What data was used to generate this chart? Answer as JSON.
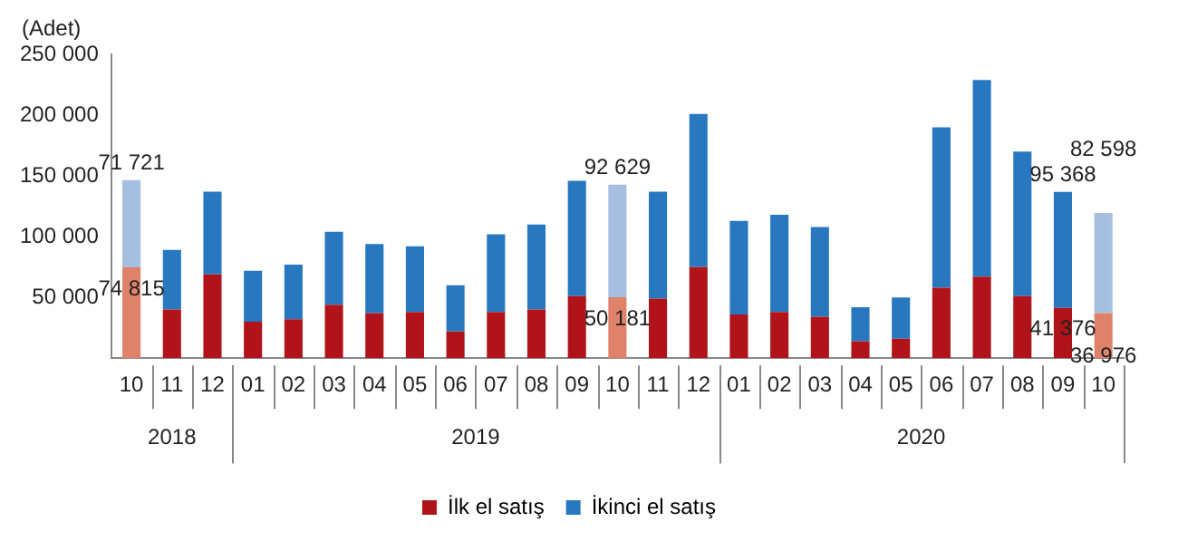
{
  "chart_data": {
    "type": "bar",
    "stacked": true,
    "ylabel": "(Adet)",
    "categories": [
      "10",
      "11",
      "12",
      "01",
      "02",
      "03",
      "04",
      "05",
      "06",
      "07",
      "08",
      "09",
      "10",
      "11",
      "12",
      "01",
      "02",
      "03",
      "04",
      "05",
      "06",
      "07",
      "08",
      "09",
      "10"
    ],
    "series": [
      {
        "name": "İlk el satış",
        "color": "#b0141a",
        "colors": [
          "#e0826a",
          "#b0141a",
          "#b0141a",
          "#b0141a",
          "#b0141a",
          "#b0141a",
          "#b0141a",
          "#b0141a",
          "#b0141a",
          "#b0141a",
          "#b0141a",
          "#b0141a",
          "#e0826a",
          "#b0141a",
          "#b0141a",
          "#b0141a",
          "#b0141a",
          "#b0141a",
          "#b0141a",
          "#b0141a",
          "#b0141a",
          "#b0141a",
          "#b0141a",
          "#b0141a",
          "#e0826a"
        ],
        "values": [
          74815,
          40000,
          69000,
          30000,
          32000,
          44000,
          37000,
          38000,
          22000,
          38000,
          40000,
          51000,
          50181,
          49000,
          75000,
          36000,
          38000,
          34000,
          14000,
          16000,
          58000,
          67000,
          51000,
          41376,
          36976
        ],
        "value_labels": [
          "74 815",
          null,
          null,
          null,
          null,
          null,
          null,
          null,
          null,
          null,
          null,
          null,
          "50 181",
          null,
          null,
          null,
          null,
          null,
          null,
          null,
          null,
          null,
          null,
          "41 376",
          "36 976"
        ]
      },
      {
        "name": "İkinci el satış",
        "color": "#2878c0",
        "colors": [
          "#a6bfe0",
          "#2878c0",
          "#2878c0",
          "#2878c0",
          "#2878c0",
          "#2878c0",
          "#2878c0",
          "#2878c0",
          "#2878c0",
          "#2878c0",
          "#2878c0",
          "#2878c0",
          "#a6bfe0",
          "#2878c0",
          "#2878c0",
          "#2878c0",
          "#2878c0",
          "#2878c0",
          "#2878c0",
          "#2878c0",
          "#2878c0",
          "#2878c0",
          "#2878c0",
          "#2878c0",
          "#a6bfe0"
        ],
        "values": [
          71721,
          49000,
          68000,
          42000,
          45000,
          60000,
          57000,
          54000,
          38000,
          64000,
          70000,
          95000,
          92629,
          88000,
          126000,
          77000,
          80000,
          74000,
          28000,
          34000,
          132000,
          162000,
          119000,
          95368,
          82598
        ],
        "value_labels": [
          "71 721",
          null,
          null,
          null,
          null,
          null,
          null,
          null,
          null,
          null,
          null,
          null,
          "92 629",
          null,
          null,
          null,
          null,
          null,
          null,
          null,
          null,
          null,
          null,
          "95 368",
          "82 598"
        ]
      }
    ],
    "ylim": [
      0,
      250000
    ],
    "yticks": [
      {
        "value": 0,
        "label": null
      },
      {
        "value": 50000,
        "label": "50 000"
      },
      {
        "value": 100000,
        "label": "100 000"
      },
      {
        "value": 150000,
        "label": "150 000"
      },
      {
        "value": 200000,
        "label": "200 000"
      },
      {
        "value": 250000,
        "label": "250 000"
      }
    ],
    "annotations": [
      "2018",
      "2019",
      "2020"
    ],
    "grid": false,
    "legend": "bottom"
  }
}
